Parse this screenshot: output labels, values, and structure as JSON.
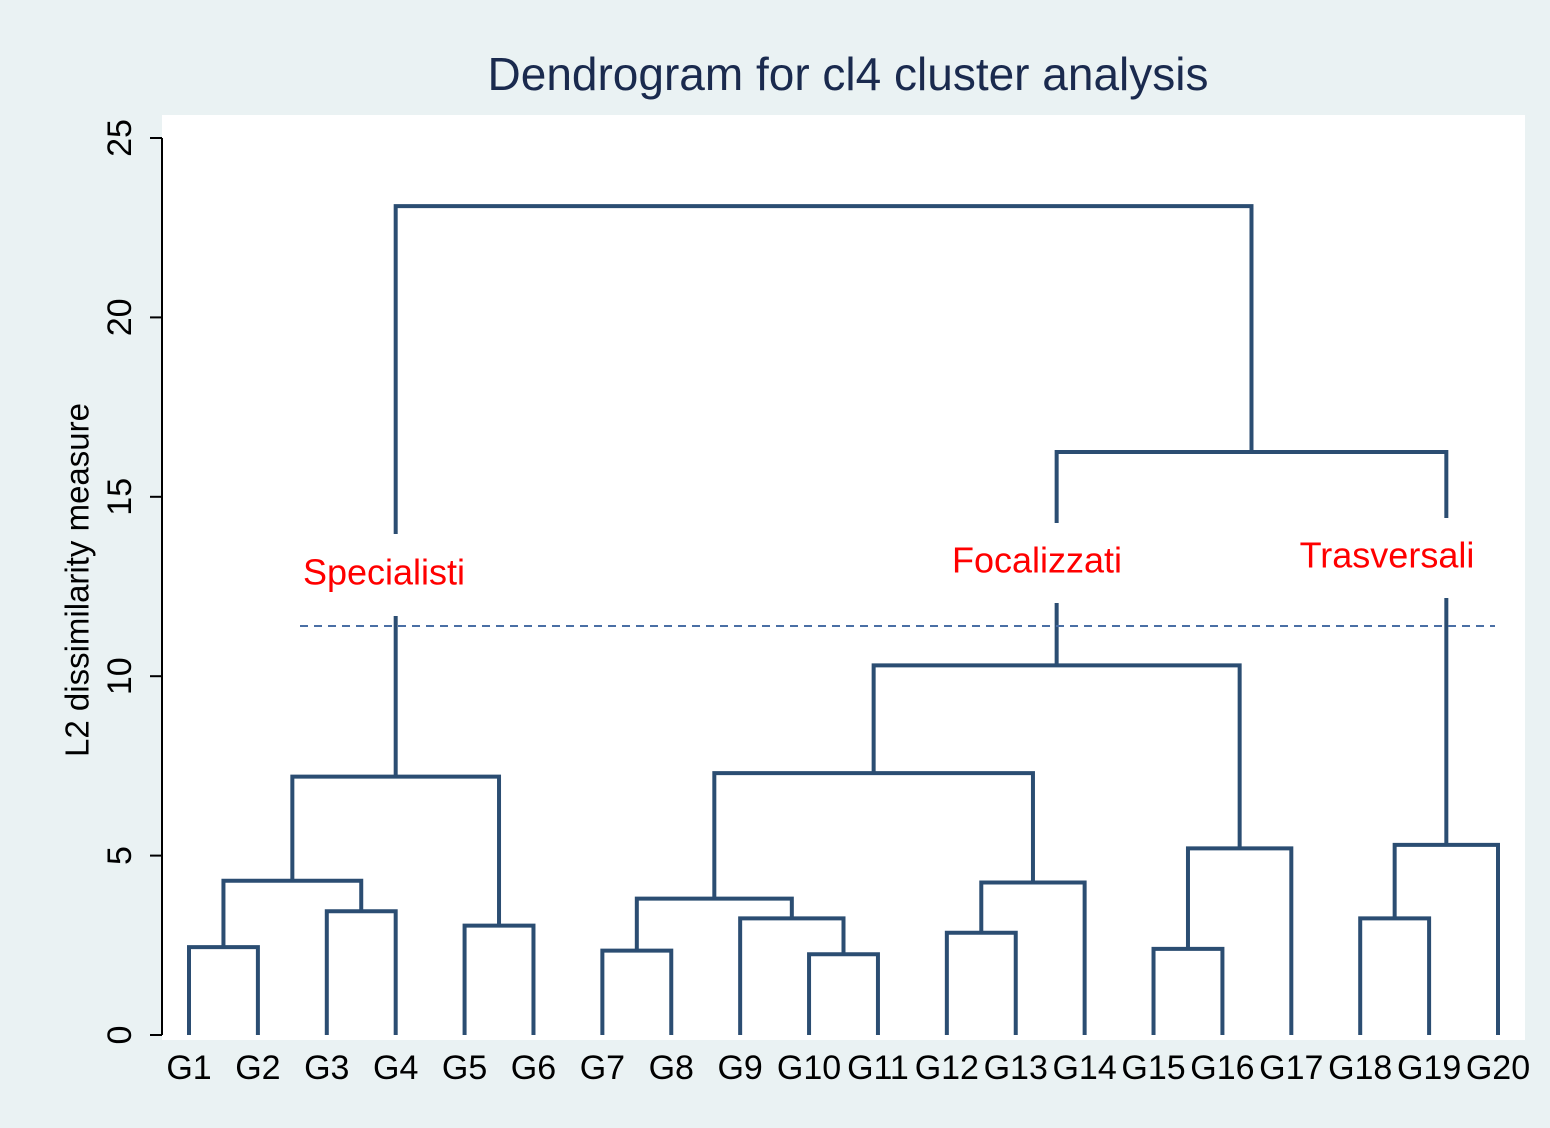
{
  "chart_data": {
    "type": "dendrogram",
    "title": "Dendrogram for cl4 cluster analysis",
    "y_label": "L2 dissimilarity measure",
    "categories": [
      "G1",
      "G2",
      "G3",
      "G4",
      "G5",
      "G6",
      "G7",
      "G8",
      "G9",
      "G10",
      "G11",
      "G12",
      "G13",
      "G14",
      "G15",
      "G16",
      "G17",
      "G18",
      "G19",
      "G20"
    ],
    "merges": [
      [
        0,
        1,
        2.45
      ],
      [
        2,
        3,
        3.45
      ],
      [
        20,
        21,
        4.3
      ],
      [
        4,
        5,
        3.05
      ],
      [
        22,
        23,
        7.2
      ],
      [
        6,
        7,
        2.35
      ],
      [
        9,
        10,
        2.25
      ],
      [
        8,
        26,
        3.25
      ],
      [
        25,
        27,
        3.8
      ],
      [
        11,
        12,
        2.85
      ],
      [
        29,
        13,
        4.25
      ],
      [
        28,
        30,
        7.3
      ],
      [
        14,
        15,
        2.4
      ],
      [
        32,
        16,
        5.2
      ],
      [
        31,
        33,
        10.3
      ],
      [
        17,
        18,
        3.25
      ],
      [
        35,
        19,
        5.3
      ],
      [
        34,
        36,
        16.25
      ],
      [
        24,
        37,
        23.1
      ]
    ],
    "color": "#2b4d72",
    "cut_height": 11.4,
    "cut_color": "#4a6fa5",
    "annotations": [
      "Specialisti",
      "Focalizzati",
      "Trasversali"
    ],
    "annotation_color": "#ff0000",
    "ylim": [
      0,
      25
    ],
    "yticks": [
      0,
      5,
      10,
      15,
      20,
      25
    ]
  }
}
